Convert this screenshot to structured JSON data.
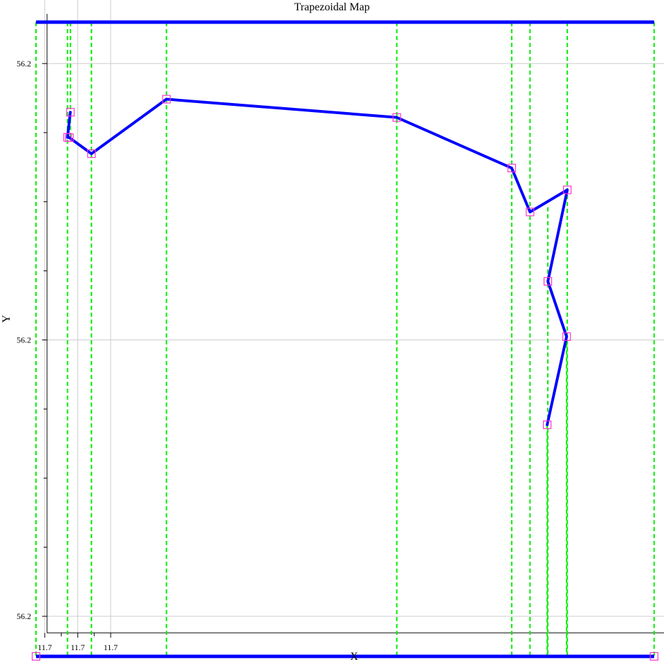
{
  "chart_data": {
    "type": "line",
    "title": "Trapezoidal Map",
    "xlabel": "X",
    "ylabel": "Y",
    "grid": true,
    "x_ticks": [
      {
        "value": 11.6999,
        "label": "11.7"
      },
      {
        "value": 11.7002,
        "label": "11.7"
      },
      {
        "value": 11.7005,
        "label": "11.7"
      }
    ],
    "x_minor_ticks": [
      11.70005,
      11.70035
    ],
    "y_ticks": [
      {
        "value": 56.2018,
        "label": "56.2"
      },
      {
        "value": 56.2008,
        "label": "56.2"
      },
      {
        "value": 56.1998,
        "label": "56.2"
      }
    ],
    "y_minor_ticks": [
      56.20155,
      56.2013,
      56.20105,
      56.20055,
      56.2003,
      56.20005
    ],
    "xlim": [
      11.69987,
      11.70554
    ],
    "ylim": [
      56.19974,
      56.20203
    ],
    "colors": {
      "polygon": "#0000ff",
      "boundary": "#0000ff",
      "vertical_lines": "#00ee00",
      "vertices": "#ff33cc"
    },
    "bounding_box": {
      "x_min": 11.69982,
      "x_max": 11.70545,
      "y_min": 56.199655,
      "y_max": 56.20195
    },
    "polygon": [
      {
        "x": 11.700133,
        "y": 56.201624
      },
      {
        "x": 11.700107,
        "y": 56.201533
      },
      {
        "x": 11.700124,
        "y": 56.201532
      },
      {
        "x": 11.700325,
        "y": 56.201474
      },
      {
        "x": 11.701008,
        "y": 56.201671
      },
      {
        "x": 11.703106,
        "y": 56.201605
      },
      {
        "x": 11.704153,
        "y": 56.201422
      },
      {
        "x": 11.70432,
        "y": 56.201263
      },
      {
        "x": 11.704659,
        "y": 56.201343
      },
      {
        "x": 11.704482,
        "y": 56.201012
      },
      {
        "x": 11.704653,
        "y": 56.200812
      },
      {
        "x": 11.704476,
        "y": 56.200493
      }
    ],
    "vertical_lines": [
      {
        "x": 11.69982,
        "y_bottom": 56.199655,
        "y_top": 56.20195
      },
      {
        "x": 11.700107,
        "y_bottom": 56.199655,
        "y_top": 56.20195
      },
      {
        "x": 11.700133,
        "y_bottom": 56.201533,
        "y_top": 56.20195
      },
      {
        "x": 11.700325,
        "y_bottom": 56.199655,
        "y_top": 56.20195
      },
      {
        "x": 11.701008,
        "y_bottom": 56.199655,
        "y_top": 56.20195
      },
      {
        "x": 11.703106,
        "y_bottom": 56.199655,
        "y_top": 56.20195
      },
      {
        "x": 11.704153,
        "y_bottom": 56.199655,
        "y_top": 56.20195
      },
      {
        "x": 11.70432,
        "y_bottom": 56.199655,
        "y_top": 56.20195
      },
      {
        "x": 11.704476,
        "y_bottom": 56.199655,
        "y_top": 56.200493
      },
      {
        "x": 11.704482,
        "y_bottom": 56.199655,
        "y_top": 56.20128
      },
      {
        "x": 11.704653,
        "y_bottom": 56.199655,
        "y_top": 56.200812
      },
      {
        "x": 11.704659,
        "y_bottom": 56.199655,
        "y_top": 56.20195
      },
      {
        "x": 11.70545,
        "y_bottom": 56.199655,
        "y_top": 56.20195
      }
    ],
    "extra_vertices": [
      {
        "x": 11.69982,
        "y": 56.199655
      },
      {
        "x": 11.70545,
        "y": 56.199655
      }
    ]
  }
}
